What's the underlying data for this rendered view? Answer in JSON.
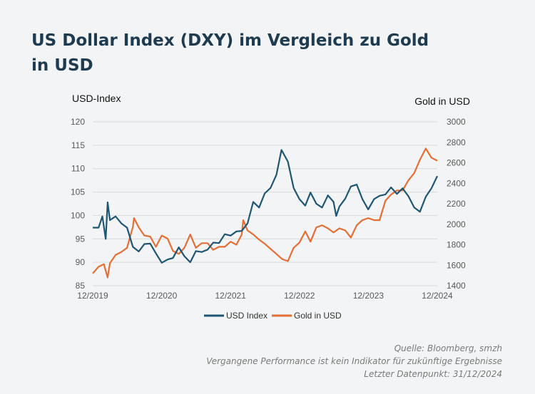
{
  "title": "US Dollar Index (DXY) im Vergleich zu Gold in USD",
  "footer": {
    "source": "Quelle: Bloomberg, smzh",
    "disclaimer": "Vergangene Performance ist kein Indikator für zukünftige Ergebnisse",
    "last_point": "Letzter Datenpunkt: 31/12/2024"
  },
  "colors": {
    "usd": "#1e5673",
    "gold": "#e46e34",
    "grid": "#d9d9d9"
  },
  "chart_data": {
    "type": "line",
    "ylabel_left": "USD-Index",
    "ylabel_right": "Gold in USD",
    "ylim_left": [
      85,
      120
    ],
    "ylim_right": [
      1400,
      3000
    ],
    "yticks_left": [
      85,
      90,
      95,
      100,
      105,
      110,
      115,
      120
    ],
    "yticks_right": [
      1400,
      1600,
      1800,
      2000,
      2200,
      2400,
      2600,
      2800,
      3000
    ],
    "xticks": [
      "12/2019",
      "12/2020",
      "12/2021",
      "12/2022",
      "12/2023",
      "12/2024"
    ],
    "grid": "horizontal",
    "legend": "bottom-center",
    "series": [
      {
        "name": "USD Index",
        "axis": "left",
        "x": [
          "2019-12-31",
          "2020-01-31",
          "2020-02-20",
          "2020-03-09",
          "2020-03-19",
          "2020-03-31",
          "2020-04-30",
          "2020-05-31",
          "2020-06-30",
          "2020-07-31",
          "2020-08-31",
          "2020-09-30",
          "2020-10-31",
          "2020-11-30",
          "2020-12-31",
          "2021-01-31",
          "2021-02-28",
          "2021-03-31",
          "2021-04-30",
          "2021-05-31",
          "2021-06-30",
          "2021-07-31",
          "2021-08-31",
          "2021-09-30",
          "2021-10-31",
          "2021-11-30",
          "2021-12-31",
          "2022-01-31",
          "2022-02-28",
          "2022-03-31",
          "2022-04-30",
          "2022-05-31",
          "2022-06-30",
          "2022-07-31",
          "2022-08-31",
          "2022-09-27",
          "2022-10-31",
          "2022-11-30",
          "2022-12-31",
          "2023-01-31",
          "2023-02-28",
          "2023-03-31",
          "2023-04-30",
          "2023-05-31",
          "2023-06-30",
          "2023-07-14",
          "2023-07-31",
          "2023-08-31",
          "2023-09-30",
          "2023-10-31",
          "2023-11-30",
          "2023-12-31",
          "2024-01-31",
          "2024-02-29",
          "2024-03-31",
          "2024-04-30",
          "2024-05-31",
          "2024-06-30",
          "2024-07-31",
          "2024-08-31",
          "2024-09-30",
          "2024-10-31",
          "2024-11-30",
          "2024-12-31"
        ],
        "values": [
          97.4,
          97.4,
          99.8,
          95.0,
          102.8,
          99.0,
          99.8,
          98.3,
          97.4,
          93.3,
          92.3,
          93.9,
          94.0,
          91.9,
          89.9,
          90.6,
          90.9,
          93.2,
          91.3,
          90.0,
          92.4,
          92.2,
          92.7,
          94.2,
          94.1,
          96.0,
          95.7,
          96.6,
          96.7,
          98.3,
          102.9,
          101.7,
          104.7,
          105.9,
          108.7,
          114.0,
          111.5,
          105.9,
          103.5,
          102.1,
          104.9,
          102.5,
          101.7,
          104.3,
          102.9,
          99.9,
          101.9,
          103.6,
          106.2,
          106.6,
          103.5,
          101.3,
          103.5,
          104.2,
          104.5,
          106.0,
          104.6,
          105.8,
          104.1,
          101.7,
          100.8,
          104.0,
          105.8,
          108.4
        ]
      },
      {
        "name": "Gold in USD",
        "axis": "right",
        "x": [
          "2019-12-31",
          "2020-01-31",
          "2020-02-28",
          "2020-03-19",
          "2020-03-31",
          "2020-04-30",
          "2020-05-31",
          "2020-06-30",
          "2020-07-31",
          "2020-08-06",
          "2020-08-31",
          "2020-09-30",
          "2020-10-31",
          "2020-11-30",
          "2020-12-31",
          "2021-01-31",
          "2021-02-28",
          "2021-03-31",
          "2021-04-30",
          "2021-05-31",
          "2021-06-30",
          "2021-07-31",
          "2021-08-31",
          "2021-09-30",
          "2021-10-31",
          "2021-11-30",
          "2021-12-31",
          "2022-01-31",
          "2022-02-28",
          "2022-03-08",
          "2022-03-31",
          "2022-04-30",
          "2022-05-31",
          "2022-06-30",
          "2022-07-31",
          "2022-08-31",
          "2022-09-30",
          "2022-10-31",
          "2022-11-30",
          "2022-12-31",
          "2023-01-31",
          "2023-02-28",
          "2023-03-31",
          "2023-04-30",
          "2023-05-31",
          "2023-06-30",
          "2023-07-31",
          "2023-08-31",
          "2023-09-30",
          "2023-10-31",
          "2023-11-30",
          "2023-12-31",
          "2024-01-31",
          "2024-02-29",
          "2024-03-31",
          "2024-04-30",
          "2024-05-31",
          "2024-06-30",
          "2024-07-31",
          "2024-08-31",
          "2024-09-30",
          "2024-10-31",
          "2024-11-30",
          "2024-12-31"
        ],
        "values": [
          1520,
          1585,
          1610,
          1480,
          1620,
          1700,
          1730,
          1770,
          1975,
          2060,
          1970,
          1890,
          1880,
          1780,
          1890,
          1860,
          1740,
          1710,
          1770,
          1900,
          1770,
          1815,
          1815,
          1750,
          1780,
          1780,
          1830,
          1800,
          1900,
          2040,
          1940,
          1900,
          1850,
          1810,
          1760,
          1710,
          1660,
          1640,
          1770,
          1820,
          1930,
          1830,
          1970,
          1990,
          1960,
          1920,
          1960,
          1940,
          1870,
          1990,
          2040,
          2060,
          2040,
          2040,
          2230,
          2290,
          2330,
          2330,
          2430,
          2500,
          2630,
          2740,
          2650,
          2620
        ]
      }
    ]
  }
}
